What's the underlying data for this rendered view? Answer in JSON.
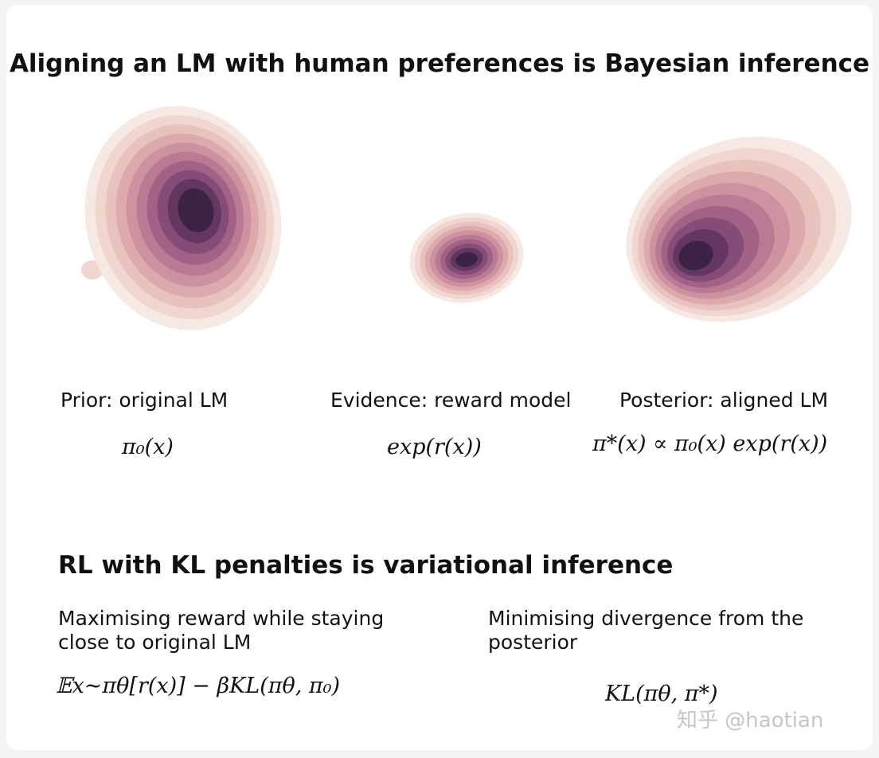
{
  "header": {
    "title": "Aligning an LM with human preferences is Bayesian inference"
  },
  "panels": [
    {
      "label": "Prior: original LM",
      "formula": "π₀(x)"
    },
    {
      "label": "Evidence: reward model",
      "formula": "exp(r(x))"
    },
    {
      "label": "Posterior: aligned LM",
      "formula": "π*(x) ∝ π₀(x) exp(r(x))"
    }
  ],
  "section": {
    "title": "RL with KL penalties is variational inference",
    "columns": [
      {
        "text": [
          "Maximising reward while staying",
          "close to original LM"
        ],
        "formula": "𝔼x∼πθ[r(x)] − βKL(πθ, π₀)"
      },
      {
        "text": [
          "Minimising divergence from the",
          "posterior"
        ],
        "formula": "KL(πθ, π*)"
      }
    ]
  },
  "watermark": "知乎 @haotian"
}
